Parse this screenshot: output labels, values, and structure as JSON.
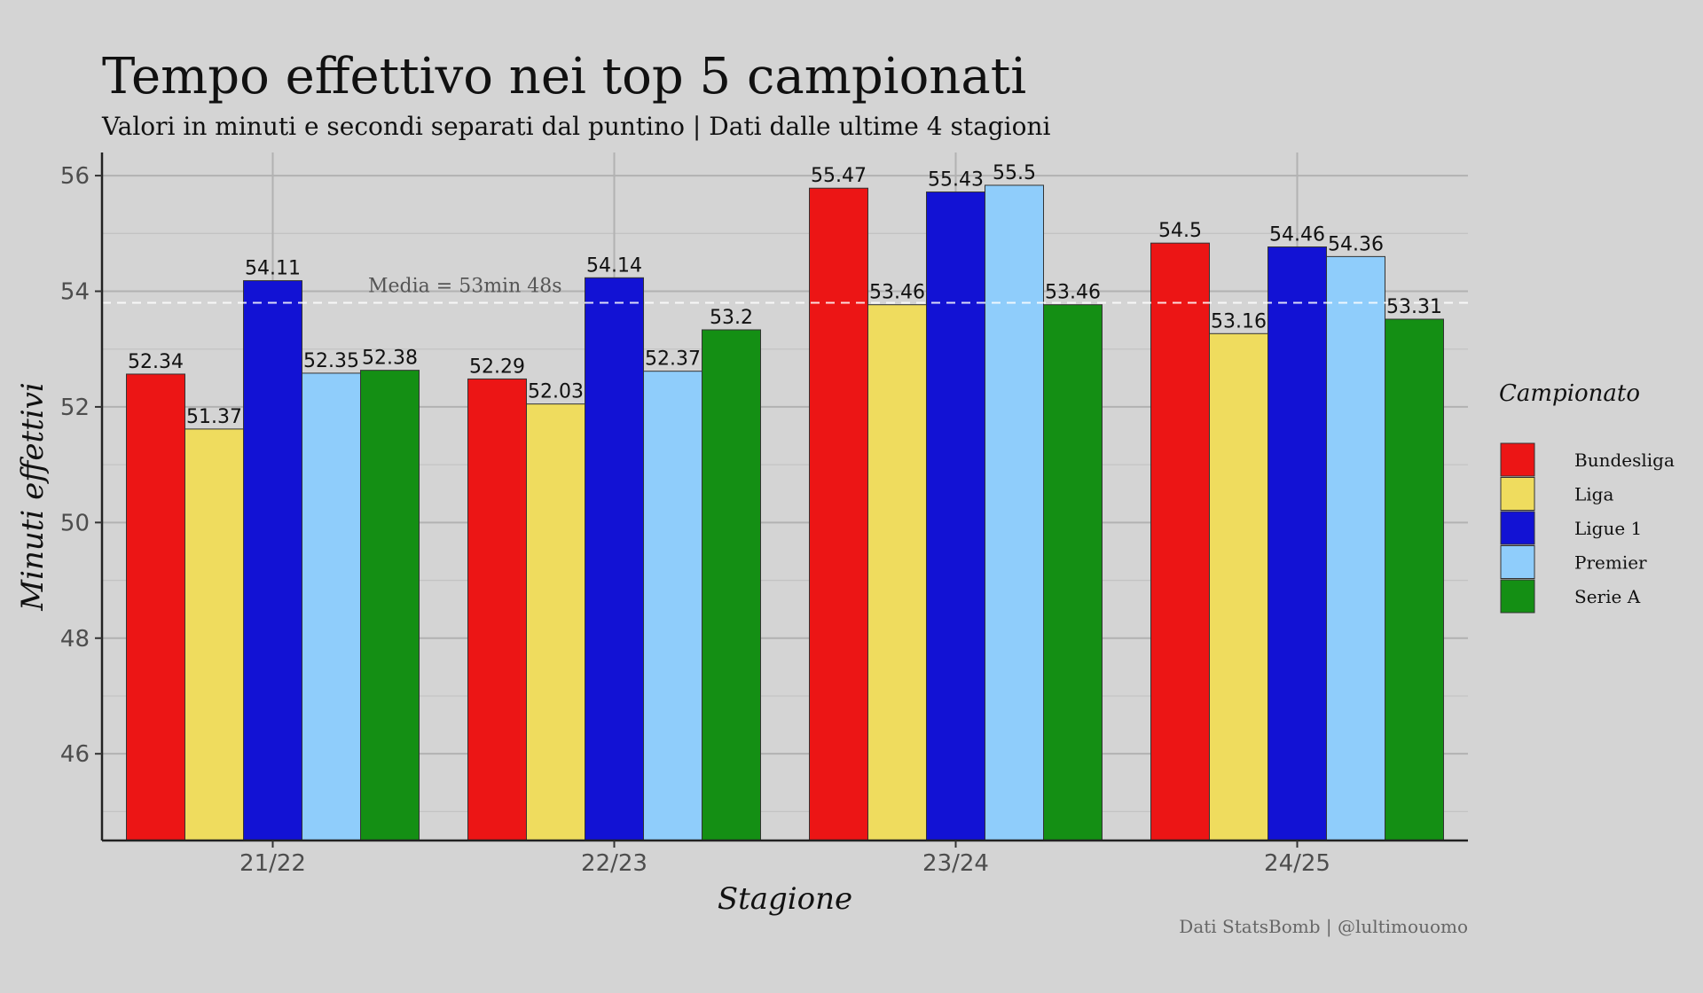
{
  "chart_data": {
    "type": "bar",
    "title": "Tempo effettivo nei top 5 campionati",
    "subtitle": "Valori in minuti e secondi separati dal puntino | Dati dalle ultime 4 stagioni",
    "xlabel": "Stagione",
    "ylabel": "Minuti effettivi",
    "ylim": [
      44.5,
      56.4
    ],
    "yticks": [
      46,
      48,
      50,
      52,
      54,
      56
    ],
    "categories": [
      "21/22",
      "22/23",
      "23/24",
      "24/25"
    ],
    "series": [
      {
        "name": "Bundesliga",
        "color": "#ec1515",
        "values": [
          52.567,
          52.483,
          55.783,
          54.833
        ],
        "labels": [
          "52.34",
          "52.29",
          "55.47",
          "54.5"
        ]
      },
      {
        "name": "Liga",
        "color": "#efdc5e",
        "values": [
          51.617,
          52.05,
          53.767,
          53.267
        ],
        "labels": [
          "51.37",
          "52.03",
          "53.46",
          "53.16"
        ]
      },
      {
        "name": "Ligue 1",
        "color": "#1212d4",
        "values": [
          54.183,
          54.233,
          55.717,
          54.767
        ],
        "labels": [
          "54.11",
          "54.14",
          "55.43",
          "54.46"
        ]
      },
      {
        "name": "Premier",
        "color": "#8fcdfb",
        "values": [
          52.583,
          52.617,
          55.833,
          54.6
        ],
        "labels": [
          "52.35",
          "52.37",
          "55.5",
          "54.36"
        ]
      },
      {
        "name": "Serie A",
        "color": "#148f14",
        "values": [
          52.633,
          53.333,
          53.767,
          53.517
        ],
        "labels": [
          "52.38",
          "53.2",
          "53.46",
          "53.31"
        ]
      }
    ],
    "average": {
      "value": 53.8,
      "label": "Media = 53min 48s"
    },
    "legend": {
      "title": "Campionato",
      "position": "right"
    },
    "grid": true,
    "caption": "Dati StatsBomb | @lultimouomo"
  }
}
